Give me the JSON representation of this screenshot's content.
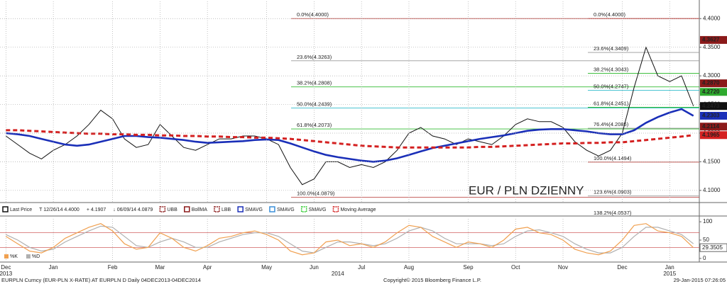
{
  "chart_data": [
    {
      "type": "line",
      "annotation": "EUR / PLN DZIENNY",
      "ylim": [
        4.08,
        4.43
      ],
      "yticks": [
        {
          "value": 4.1,
          "label": "4.1000"
        },
        {
          "value": 4.15,
          "label": "4.1500"
        },
        {
          "value": 4.2,
          "label": "4.2000"
        },
        {
          "value": 4.25,
          "label": "4.2500"
        },
        {
          "value": 4.3,
          "label": "4.3000"
        },
        {
          "value": 4.35,
          "label": "4.3500"
        },
        {
          "value": 4.4,
          "label": "4.4000"
        }
      ],
      "grid": true,
      "series": [
        {
          "name": "Last Price",
          "color": "#111111",
          "values": [
            4.195,
            4.18,
            4.165,
            4.155,
            4.17,
            4.18,
            4.195,
            4.215,
            4.24,
            4.225,
            4.19,
            4.175,
            4.18,
            4.215,
            4.195,
            4.175,
            4.17,
            4.18,
            4.19,
            4.19,
            4.195,
            4.195,
            4.19,
            4.18,
            4.14,
            4.11,
            4.12,
            4.15,
            4.15,
            4.14,
            4.145,
            4.14,
            4.15,
            4.17,
            4.2,
            4.21,
            4.195,
            4.19,
            4.18,
            4.19,
            4.185,
            4.18,
            4.195,
            4.215,
            4.225,
            4.22,
            4.22,
            4.21,
            4.185,
            4.17,
            4.16,
            4.17,
            4.2,
            4.28,
            4.35,
            4.3,
            4.29,
            4.3,
            4.2473
          ]
        },
        {
          "name": "SMAVG",
          "color": "#1a2fb8",
          "values": [
            4.2,
            4.198,
            4.195,
            4.19,
            4.185,
            4.18,
            4.178,
            4.18,
            4.185,
            4.19,
            4.195,
            4.195,
            4.193,
            4.192,
            4.19,
            4.188,
            4.185,
            4.183,
            4.184,
            4.185,
            4.186,
            4.188,
            4.189,
            4.188,
            4.182,
            4.175,
            4.168,
            4.162,
            4.158,
            4.155,
            4.152,
            4.15,
            4.152,
            4.156,
            4.162,
            4.168,
            4.174,
            4.178,
            4.182,
            4.186,
            4.19,
            4.193,
            4.196,
            4.2,
            4.204,
            4.206,
            4.207,
            4.207,
            4.205,
            4.203,
            4.2,
            4.198,
            4.198,
            4.205,
            4.218,
            4.228,
            4.236,
            4.242,
            4.2303
          ]
        },
        {
          "name": "Moving Average",
          "color": "#d42020",
          "values": [
            4.205,
            4.205,
            4.204,
            4.203,
            4.202,
            4.201,
            4.2,
            4.199,
            4.199,
            4.198,
            4.198,
            4.197,
            4.197,
            4.196,
            4.196,
            4.195,
            4.195,
            4.194,
            4.194,
            4.193,
            4.193,
            4.192,
            4.192,
            4.191,
            4.19,
            4.188,
            4.186,
            4.184,
            4.182,
            4.18,
            4.178,
            4.177,
            4.176,
            4.175,
            4.175,
            4.175,
            4.175,
            4.175,
            4.175,
            4.175,
            4.176,
            4.176,
            4.177,
            4.178,
            4.179,
            4.18,
            4.181,
            4.182,
            4.182,
            4.183,
            4.183,
            4.184,
            4.184,
            4.186,
            4.188,
            4.19,
            4.192,
            4.194,
            4.1965
          ]
        }
      ],
      "legend_stats": [
        "T 12/26/14 4.4000",
        "+ 4.1907",
        "↓ 06/09/14 4.0879"
      ],
      "overlays": [
        {
          "name": "UBB",
          "color": "#8b1a1a"
        },
        {
          "name": "BollMA",
          "color": "#8b1a1a"
        },
        {
          "name": "LBB",
          "color": "#8b1a1a"
        },
        {
          "name": "SMAVG",
          "color": "#3a8fd8"
        },
        {
          "name": "SMAVG",
          "color": "#33cc33"
        }
      ],
      "right_markers": [
        {
          "value": 4.3627,
          "label": "4.3627",
          "color": "#8b1a1a"
        },
        {
          "value": 4.287,
          "label": "4.2870",
          "color": "#8b1a1a"
        },
        {
          "value": 4.272,
          "label": "4.2720",
          "color": "#2eaa2e"
        },
        {
          "value": 4.2114,
          "label": "4.2114",
          "color": "#8b1a1a"
        }
      ],
      "fib_left": [
        {
          "value": 4.4,
          "label": "0.0%(4.4000)",
          "color": "#c0504d"
        },
        {
          "value": 4.3263,
          "label": "23.6%(4.3263)",
          "color": "#999999"
        },
        {
          "value": 4.2808,
          "label": "38.2%(4.2808)",
          "color": "#33bb33"
        },
        {
          "value": 4.2439,
          "label": "50.0%(4.2439)",
          "color": "#33bbcc"
        },
        {
          "value": 4.2073,
          "label": "61.8%(4.2073)",
          "color": "#33bb33"
        },
        {
          "value": 4.0879,
          "label": "100.0%(4.0879)",
          "color": "#c0504d"
        }
      ],
      "fib_right": [
        {
          "value": 4.4,
          "label": "0.0%(4.4000)",
          "color": "#c0504d"
        },
        {
          "value": 4.3409,
          "label": "23.6%(4.3409)",
          "color": "#999999"
        },
        {
          "value": 4.3043,
          "label": "38.2%(4.3043)",
          "color": "#33bb33"
        },
        {
          "value": 4.2747,
          "label": "50.0%(4.2747)",
          "color": "#33bbcc"
        },
        {
          "value": 4.2451,
          "label": "61.8%(4.2451)",
          "color": "#33bb33"
        },
        {
          "value": 4.2085,
          "label": "76.4%(4.2085)",
          "color": "#999999"
        },
        {
          "value": 4.1494,
          "label": "100.0%(4.1494)",
          "color": "#c0504d"
        },
        {
          "value": 4.0903,
          "label": "123.6%(4.0903)",
          "color": "#999999"
        },
        {
          "value": 4.0537,
          "label": "138.2%(4.0537)",
          "color": "#33bb33"
        }
      ]
    },
    {
      "type": "line",
      "categories": [
        "Dec",
        null,
        null,
        null,
        "Jan",
        null,
        null,
        null,
        null,
        "Feb",
        null,
        null,
        null,
        "Mar",
        null,
        null,
        null,
        "Apr",
        null,
        null,
        null,
        null,
        "May",
        null,
        null,
        null,
        "Jun",
        null,
        null,
        null,
        "Jul",
        null,
        null,
        null,
        "Aug",
        null,
        null,
        null,
        null,
        "Sep",
        null,
        null,
        null,
        "Oct",
        null,
        null,
        null,
        "Nov",
        null,
        null,
        null,
        null,
        "Dec",
        null,
        null,
        null,
        "Jan",
        null,
        null
      ],
      "years": [
        "2013",
        null,
        null,
        null,
        null,
        null,
        null,
        null,
        null,
        null,
        null,
        null,
        null,
        null,
        null,
        null,
        null,
        null,
        null,
        null,
        null,
        null,
        null,
        null,
        null,
        null,
        null,
        null,
        "2014",
        null,
        null,
        null,
        null,
        null,
        null,
        null,
        null,
        null,
        null,
        null,
        null,
        null,
        null,
        null,
        null,
        null,
        null,
        null,
        null,
        null,
        null,
        null,
        null,
        null,
        null,
        null,
        "2015",
        null,
        null
      ],
      "ylim": [
        -8,
        108
      ],
      "yticks": [
        0,
        50,
        100
      ],
      "ref_lines": [
        30,
        70
      ],
      "series": [
        {
          "name": "%K",
          "color": "#f0a050",
          "values": [
            60,
            40,
            20,
            15,
            30,
            55,
            70,
            85,
            95,
            75,
            40,
            25,
            30,
            70,
            55,
            30,
            20,
            35,
            55,
            60,
            70,
            75,
            65,
            50,
            20,
            10,
            15,
            45,
            50,
            35,
            40,
            30,
            45,
            70,
            90,
            85,
            60,
            45,
            30,
            45,
            40,
            30,
            50,
            80,
            85,
            70,
            65,
            50,
            25,
            15,
            10,
            20,
            50,
            90,
            95,
            75,
            70,
            60,
            29.3505
          ]
        },
        {
          "name": "%D",
          "color": "#b0b0b0",
          "values": [
            65,
            50,
            30,
            20,
            25,
            45,
            60,
            75,
            88,
            85,
            60,
            35,
            30,
            45,
            55,
            45,
            30,
            30,
            45,
            55,
            65,
            70,
            70,
            60,
            40,
            20,
            15,
            30,
            45,
            45,
            40,
            35,
            40,
            55,
            75,
            85,
            75,
            55,
            40,
            40,
            40,
            35,
            40,
            60,
            75,
            78,
            70,
            60,
            40,
            25,
            15,
            15,
            30,
            60,
            85,
            85,
            75,
            65,
            40
          ]
        }
      ]
    }
  ],
  "footer": {
    "source": "EURPLN Curncy (EUR-PLN X-RATE) AT EURPLN D Daily 04DEC2013-04DEC2014",
    "copyright": "Copyright© 2015 Bloomberg Finance L.P.",
    "timestamp": "29-Jan-2015 07:26:05"
  }
}
